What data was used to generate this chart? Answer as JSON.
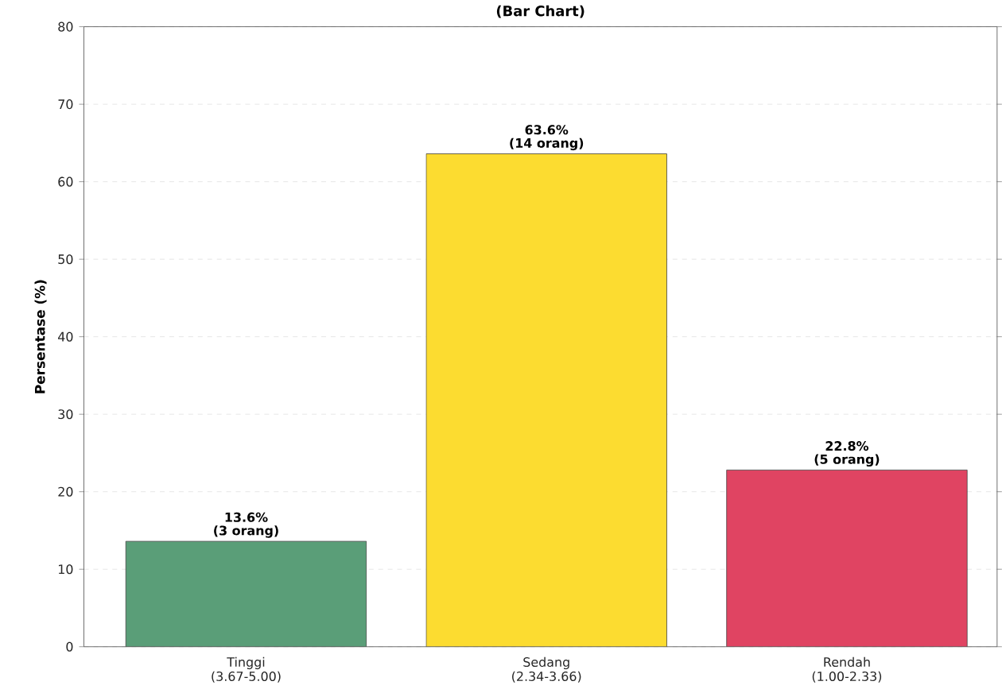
{
  "chart_data": {
    "type": "bar",
    "title": "(Bar Chart)",
    "ylabel": "Persentase (%)",
    "categories": [
      "Tinggi (3.67-5.00)",
      "Sedang (2.34-3.66)",
      "Rendah (1.00-2.33)"
    ],
    "values": [
      13.6,
      63.6,
      22.8
    ],
    "colors": [
      "#5a9e78",
      "#fcdc30",
      "#e04462"
    ],
    "value_labels": [
      "13.6%",
      "63.6%",
      "22.8%"
    ],
    "annotations": [
      {
        "text": "(3 orang)",
        "x": "Tinggi (3.67-5.00)",
        "y": 13.6
      },
      {
        "text": "(14 orang)",
        "x": "Sedang (2.34-3.66)",
        "y": 63.6
      },
      {
        "text": "(5 orang)",
        "x": "Rendah (1.00-2.33)",
        "y": 22.8
      }
    ],
    "ylim": [
      0,
      80
    ],
    "yticks": [
      0,
      10,
      20,
      30,
      40,
      50,
      60,
      70,
      80
    ],
    "grid": "y"
  }
}
